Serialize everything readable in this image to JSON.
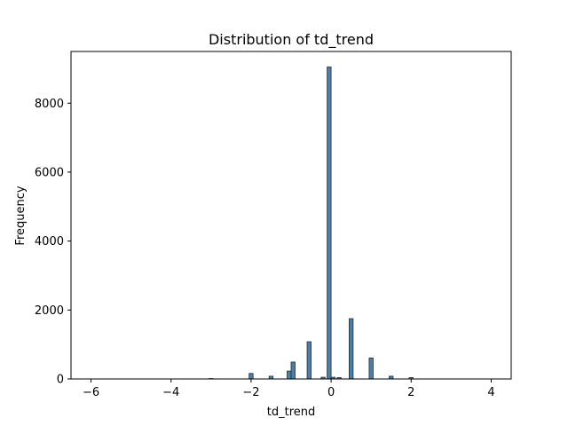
{
  "chart_data": {
    "type": "bar",
    "title": "Distribution of td_trend",
    "xlabel": "td_trend",
    "ylabel": "Frequency",
    "xlim": [
      -6.5,
      4.5
    ],
    "ylim": [
      0,
      9500
    ],
    "x_ticks": [
      -6,
      -4,
      -2,
      0,
      2,
      4
    ],
    "x_tick_labels": [
      "−6",
      "−4",
      "−2",
      "0",
      "2",
      "4"
    ],
    "y_ticks": [
      0,
      2000,
      4000,
      6000,
      8000
    ],
    "y_tick_labels": [
      "0",
      "2000",
      "4000",
      "6000",
      "8000"
    ],
    "bin_width": 0.1,
    "bins": [
      {
        "x": -3.0,
        "count": 12
      },
      {
        "x": -2.0,
        "count": 160
      },
      {
        "x": -1.5,
        "count": 80
      },
      {
        "x": -1.05,
        "count": 230
      },
      {
        "x": -0.95,
        "count": 490
      },
      {
        "x": -0.55,
        "count": 1080
      },
      {
        "x": -0.2,
        "count": 50
      },
      {
        "x": -0.05,
        "count": 9050
      },
      {
        "x": 0.05,
        "count": 50
      },
      {
        "x": 0.2,
        "count": 40
      },
      {
        "x": 0.5,
        "count": 1750
      },
      {
        "x": 1.0,
        "count": 610
      },
      {
        "x": 1.5,
        "count": 80
      },
      {
        "x": 2.0,
        "count": 40
      }
    ],
    "grid": false,
    "colors": {
      "bar_fill": "#4c7fa3",
      "bar_edge": "#1f2f3f",
      "axis": "#000000"
    }
  }
}
